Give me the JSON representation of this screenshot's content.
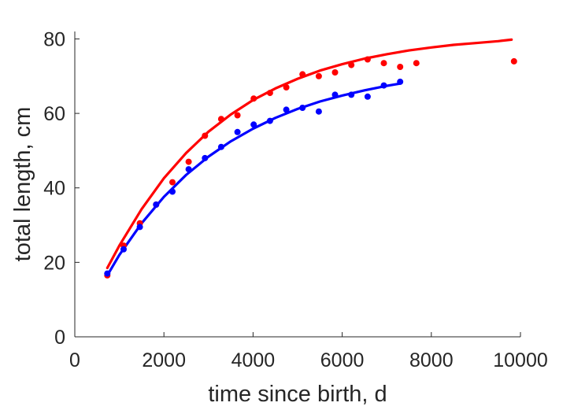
{
  "chart_data": {
    "type": "scatter",
    "xlabel": "time since birth, d",
    "ylabel": "total length, cm",
    "xlim": [
      0,
      10000
    ],
    "ylim": [
      0,
      82
    ],
    "xticks": [
      0,
      2000,
      4000,
      6000,
      8000,
      10000
    ],
    "yticks": [
      0,
      20,
      40,
      60,
      80
    ],
    "xtick_labels": [
      "0",
      "2000",
      "4000",
      "6000",
      "8000",
      "10000"
    ],
    "ytick_labels": [
      "0",
      "20",
      "40",
      "60",
      "80"
    ],
    "grid": false,
    "legend": "none",
    "series": [
      {
        "color": "#ff0000",
        "kind": "points",
        "x": [
          730,
          1095,
          1460,
          1825,
          2190,
          2555,
          2920,
          3285,
          3650,
          4015,
          4380,
          4745,
          5110,
          5475,
          5840,
          6205,
          6570,
          6935,
          7300,
          7665,
          9855
        ],
        "y": [
          16.5,
          24.5,
          30.5,
          35.5,
          41.5,
          47,
          54,
          58.5,
          59.5,
          64,
          65.5,
          67,
          70.5,
          70,
          71,
          73,
          74.5,
          73.5,
          72.5,
          73.5,
          74
        ]
      },
      {
        "color": "#ff0000",
        "kind": "fit-curve",
        "x": [
          730,
          1000,
          1500,
          2000,
          2500,
          3000,
          3500,
          4000,
          4500,
          5000,
          5500,
          6000,
          6500,
          7000,
          7500,
          8000,
          8500,
          9000,
          9500,
          9800
        ],
        "y": [
          18.5,
          24.5,
          34.3,
          42.6,
          49.4,
          55.1,
          59.7,
          63.6,
          66.7,
          69.3,
          71.5,
          73.2,
          74.7,
          75.9,
          76.9,
          77.7,
          78.4,
          78.9,
          79.4,
          79.8
        ]
      },
      {
        "color": "#0000ff",
        "kind": "points",
        "x": [
          730,
          1095,
          1460,
          1825,
          2190,
          2555,
          2920,
          3285,
          3650,
          4015,
          4380,
          4745,
          5110,
          5475,
          5840,
          6205,
          6570,
          6935,
          7300
        ],
        "y": [
          17,
          23.5,
          29.5,
          35.5,
          39,
          45,
          48,
          51,
          55,
          57,
          58,
          61,
          61.5,
          60.5,
          65,
          65,
          64.5,
          67.5,
          68.5
        ]
      },
      {
        "color": "#0000ff",
        "kind": "fit-curve",
        "x": [
          730,
          1000,
          1500,
          2000,
          2500,
          3000,
          3500,
          4000,
          4500,
          5000,
          5500,
          6000,
          6500,
          7000,
          7300
        ],
        "y": [
          16.5,
          22,
          30.5,
          37.6,
          43.5,
          48.4,
          52.5,
          55.9,
          58.8,
          61.2,
          63.2,
          64.8,
          66.2,
          67.4,
          68
        ]
      }
    ]
  }
}
